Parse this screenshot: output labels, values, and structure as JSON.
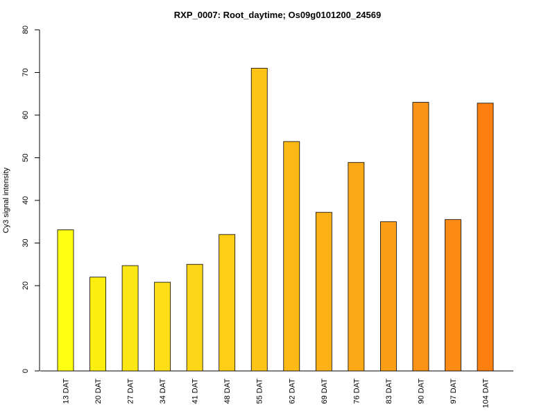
{
  "chart_data": {
    "type": "bar",
    "title": "RXP_0007: Root_daytime; Os09g0101200_24569",
    "xlabel": "",
    "ylabel": "Cy3 signal intensity",
    "categories": [
      "13 DAT",
      "20 DAT",
      "27 DAT",
      "34 DAT",
      "41 DAT",
      "48 DAT",
      "55 DAT",
      "62 DAT",
      "69 DAT",
      "76 DAT",
      "83 DAT",
      "90 DAT",
      "97 DAT",
      "104 DAT"
    ],
    "values": [
      33.1,
      22.0,
      24.7,
      20.8,
      25.0,
      32.0,
      71.0,
      53.8,
      37.2,
      48.9,
      35.0,
      63.0,
      35.5,
      62.8
    ],
    "colors": [
      "#ffff11",
      "#fdee11",
      "#fde616",
      "#fddf17",
      "#fdd717",
      "#fdce16",
      "#fcc417",
      "#fdba16",
      "#fcb217",
      "#fca917",
      "#fc9e16",
      "#fb9416",
      "#fc8b16",
      "#fc7f10"
    ],
    "yticks": [
      0,
      20,
      30,
      40,
      50,
      60,
      70,
      80
    ],
    "ylim": [
      0,
      80
    ],
    "grid": false,
    "legend": "none"
  }
}
